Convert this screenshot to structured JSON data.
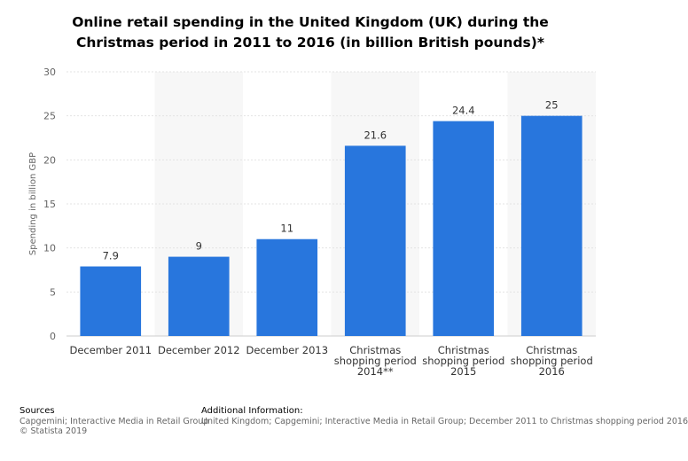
{
  "chart_data": {
    "type": "bar",
    "title": "Online retail spending in the United Kingdom (UK) during the Christmas period in 2011 to 2016 (in billion British pounds)*",
    "title_lines": [
      "Online retail spending in the United Kingdom (UK) during the",
      "Christmas period in 2011 to 2016 (in billion British pounds)*"
    ],
    "xlabel": "",
    "ylabel": "Spending in billion GBP",
    "ylim": [
      0,
      30
    ],
    "yticks": [
      0,
      5,
      10,
      15,
      20,
      25,
      30
    ],
    "grid": true,
    "categories": [
      "December 2011",
      "December 2012",
      "December 2013",
      "Christmas shopping period 2014**",
      "Christmas shopping period 2015",
      "Christmas shopping period 2016"
    ],
    "category_lines": [
      [
        "December 2011"
      ],
      [
        "December 2012"
      ],
      [
        "December 2013"
      ],
      [
        "Christmas",
        "shopping period",
        "2014**"
      ],
      [
        "Christmas",
        "shopping period",
        "2015"
      ],
      [
        "Christmas",
        "shopping period",
        "2016"
      ]
    ],
    "values": [
      7.9,
      9,
      11,
      21.6,
      24.4,
      25
    ],
    "value_labels": [
      "7.9",
      "9",
      "11",
      "21.6",
      "24.4",
      "25"
    ],
    "bar_color": "#2876dd"
  },
  "footer": {
    "sources_heading": "Sources",
    "sources_text": "Capgemini; Interactive Media in Retail Group",
    "copyright": "© Statista 2019",
    "info_heading": "Additional Information:",
    "info_text": "United Kingdom; Capgemini; Interactive Media in Retail Group; December 2011 to Christmas shopping period 2016"
  }
}
